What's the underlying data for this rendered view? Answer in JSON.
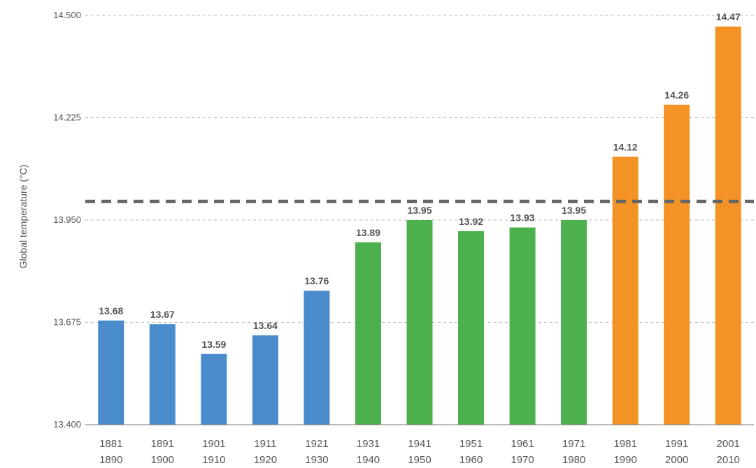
{
  "chart_data": {
    "type": "bar",
    "title": "",
    "xlabel": "",
    "ylabel": "Global temperature (°C)",
    "ylim": [
      13.4,
      14.5
    ],
    "yticks": [
      "13.400",
      "13.675",
      "13.950",
      "14.225",
      "14.500"
    ],
    "ytick_values": [
      13.4,
      13.675,
      13.95,
      14.225,
      14.5
    ],
    "grid": true,
    "reference_line": 14.0,
    "categories": [
      [
        "1881",
        "1890"
      ],
      [
        "1891",
        "1900"
      ],
      [
        "1901",
        "1910"
      ],
      [
        "1911",
        "1920"
      ],
      [
        "1921",
        "1930"
      ],
      [
        "1931",
        "1940"
      ],
      [
        "1941",
        "1950"
      ],
      [
        "1951",
        "1960"
      ],
      [
        "1961",
        "1970"
      ],
      [
        "1971",
        "1980"
      ],
      [
        "1981",
        "1990"
      ],
      [
        "1991",
        "2000"
      ],
      [
        "2001",
        "2010"
      ]
    ],
    "values": [
      13.68,
      13.67,
      13.59,
      13.64,
      13.76,
      13.89,
      13.95,
      13.92,
      13.93,
      13.95,
      14.12,
      14.26,
      14.47
    ],
    "value_labels": [
      "13.68",
      "13.67",
      "13.59",
      "13.64",
      "13.76",
      "13.89",
      "13.95",
      "13.92",
      "13.93",
      "13.95",
      "14.12",
      "14.26",
      "14.47"
    ],
    "bar_colors": [
      "#4a8ccb",
      "#4a8ccb",
      "#4a8ccb",
      "#4a8ccb",
      "#4a8ccb",
      "#4cb04c",
      "#4cb04c",
      "#4cb04c",
      "#4cb04c",
      "#4cb04c",
      "#f39325",
      "#f39325",
      "#f39325"
    ],
    "colors": {
      "blue": "#4a8ccb",
      "green": "#4cb04c",
      "orange": "#f39325",
      "reference_line": "#666666",
      "grid": "#b8b8b8",
      "text": "#555555"
    }
  }
}
